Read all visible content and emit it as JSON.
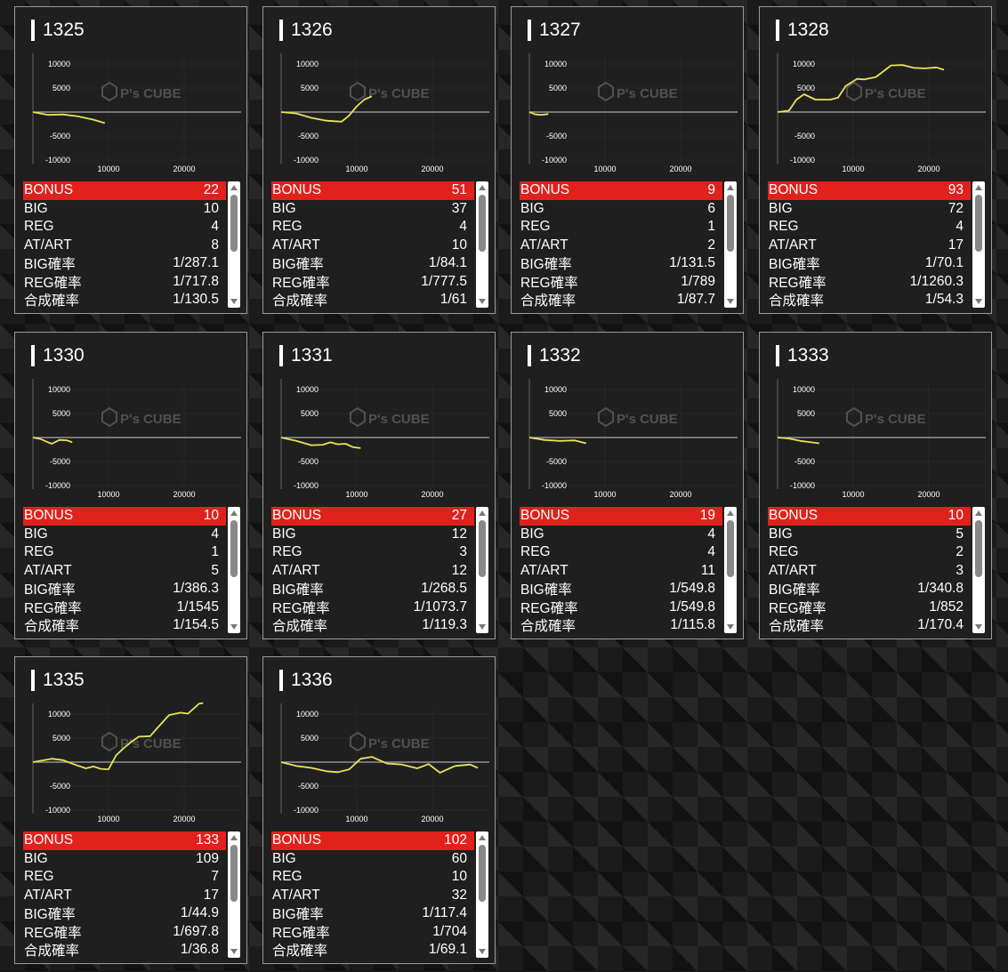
{
  "watermark": "P's CUBE",
  "colors": {
    "bonus_bg": "#e0211c",
    "line": "#e8e25a",
    "panel": "#1f1f1f"
  },
  "graph_axis": {
    "y_ticks": [
      "10000",
      "5000",
      "-5000",
      "-10000"
    ],
    "x_ticks": [
      "10000",
      "20000"
    ]
  },
  "machines": [
    {
      "number": "1325",
      "stats": [
        {
          "label": "BONUS",
          "value": "22"
        },
        {
          "label": "BIG",
          "value": "10"
        },
        {
          "label": "REG",
          "value": "4"
        },
        {
          "label": "AT/ART",
          "value": "8"
        },
        {
          "label": "BIG確率",
          "value": "1/287.1"
        },
        {
          "label": "REG確率",
          "value": "1/717.8"
        },
        {
          "label": "合成確率",
          "value": "1/130.5"
        }
      ],
      "chart_data": {
        "type": "line",
        "ylim": [
          -12000,
          12000
        ],
        "xlim": [
          0,
          27000
        ],
        "x": [
          0,
          2000,
          4000,
          6000,
          8000,
          9500
        ],
        "y": [
          0,
          -600,
          -500,
          -900,
          -1600,
          -2300
        ]
      }
    },
    {
      "number": "1326",
      "stats": [
        {
          "label": "BONUS",
          "value": "51"
        },
        {
          "label": "BIG",
          "value": "37"
        },
        {
          "label": "REG",
          "value": "4"
        },
        {
          "label": "AT/ART",
          "value": "10"
        },
        {
          "label": "BIG確率",
          "value": "1/84.1"
        },
        {
          "label": "REG確率",
          "value": "1/777.5"
        },
        {
          "label": "合成確率",
          "value": "1/61"
        }
      ],
      "chart_data": {
        "type": "line",
        "ylim": [
          -12000,
          12000
        ],
        "xlim": [
          0,
          27000
        ],
        "x": [
          0,
          2000,
          4000,
          6000,
          8000,
          9000,
          10000,
          11000,
          12000
        ],
        "y": [
          0,
          -300,
          -1200,
          -1800,
          -2000,
          -700,
          1200,
          2600,
          3300
        ]
      }
    },
    {
      "number": "1327",
      "stats": [
        {
          "label": "BONUS",
          "value": "9"
        },
        {
          "label": "BIG",
          "value": "6"
        },
        {
          "label": "REG",
          "value": "1"
        },
        {
          "label": "AT/ART",
          "value": "2"
        },
        {
          "label": "BIG確率",
          "value": "1/131.5"
        },
        {
          "label": "REG確率",
          "value": "1/789"
        },
        {
          "label": "合成確率",
          "value": "1/87.7"
        }
      ],
      "chart_data": {
        "type": "line",
        "ylim": [
          -12000,
          12000
        ],
        "xlim": [
          0,
          27000
        ],
        "x": [
          0,
          800,
          1600,
          2500
        ],
        "y": [
          0,
          -500,
          -600,
          -400
        ]
      }
    },
    {
      "number": "1328",
      "stats": [
        {
          "label": "BONUS",
          "value": "93"
        },
        {
          "label": "BIG",
          "value": "72"
        },
        {
          "label": "REG",
          "value": "4"
        },
        {
          "label": "AT/ART",
          "value": "17"
        },
        {
          "label": "BIG確率",
          "value": "1/70.1"
        },
        {
          "label": "REG確率",
          "value": "1/1260.3"
        },
        {
          "label": "合成確率",
          "value": "1/54.3"
        }
      ],
      "chart_data": {
        "type": "line",
        "ylim": [
          -12000,
          12000
        ],
        "xlim": [
          0,
          27000
        ],
        "x": [
          0,
          1500,
          2500,
          3500,
          5000,
          7000,
          8000,
          9000,
          10500,
          11500,
          13000,
          14000,
          15000,
          16500,
          18000,
          19500,
          21000,
          22000
        ],
        "y": [
          0,
          300,
          2600,
          3700,
          2600,
          2600,
          3000,
          5400,
          6900,
          6800,
          7300,
          8500,
          9700,
          9800,
          9200,
          9100,
          9300,
          8800
        ]
      }
    },
    {
      "number": "1330",
      "stats": [
        {
          "label": "BONUS",
          "value": "10"
        },
        {
          "label": "BIG",
          "value": "4"
        },
        {
          "label": "REG",
          "value": "1"
        },
        {
          "label": "AT/ART",
          "value": "5"
        },
        {
          "label": "BIG確率",
          "value": "1/386.3"
        },
        {
          "label": "REG確率",
          "value": "1/1545"
        },
        {
          "label": "合成確率",
          "value": "1/154.5"
        }
      ],
      "chart_data": {
        "type": "line",
        "ylim": [
          -12000,
          12000
        ],
        "xlim": [
          0,
          27000
        ],
        "x": [
          0,
          1000,
          2000,
          2500,
          3500,
          4500,
          5200
        ],
        "y": [
          0,
          -300,
          -1000,
          -1300,
          -500,
          -600,
          -1000
        ]
      }
    },
    {
      "number": "1331",
      "stats": [
        {
          "label": "BONUS",
          "value": "27"
        },
        {
          "label": "BIG",
          "value": "12"
        },
        {
          "label": "REG",
          "value": "3"
        },
        {
          "label": "AT/ART",
          "value": "12"
        },
        {
          "label": "BIG確率",
          "value": "1/268.5"
        },
        {
          "label": "REG確率",
          "value": "1/1073.7"
        },
        {
          "label": "合成確率",
          "value": "1/119.3"
        }
      ],
      "chart_data": {
        "type": "line",
        "ylim": [
          -12000,
          12000
        ],
        "xlim": [
          0,
          27000
        ],
        "x": [
          0,
          2000,
          4000,
          5500,
          6500,
          7500,
          8500,
          9500,
          10500
        ],
        "y": [
          0,
          -700,
          -1600,
          -1500,
          -1000,
          -1400,
          -1300,
          -2000,
          -2200
        ]
      }
    },
    {
      "number": "1332",
      "stats": [
        {
          "label": "BONUS",
          "value": "19"
        },
        {
          "label": "BIG",
          "value": "4"
        },
        {
          "label": "REG",
          "value": "4"
        },
        {
          "label": "AT/ART",
          "value": "11"
        },
        {
          "label": "BIG確率",
          "value": "1/549.8"
        },
        {
          "label": "REG確率",
          "value": "1/549.8"
        },
        {
          "label": "合成確率",
          "value": "1/115.8"
        }
      ],
      "chart_data": {
        "type": "line",
        "ylim": [
          -12000,
          12000
        ],
        "xlim": [
          0,
          27000
        ],
        "x": [
          0,
          2000,
          4000,
          6000,
          7500
        ],
        "y": [
          0,
          -500,
          -700,
          -600,
          -1200
        ]
      }
    },
    {
      "number": "1333",
      "stats": [
        {
          "label": "BONUS",
          "value": "10"
        },
        {
          "label": "BIG",
          "value": "5"
        },
        {
          "label": "REG",
          "value": "2"
        },
        {
          "label": "AT/ART",
          "value": "3"
        },
        {
          "label": "BIG確率",
          "value": "1/340.8"
        },
        {
          "label": "REG確率",
          "value": "1/852"
        },
        {
          "label": "合成確率",
          "value": "1/170.4"
        }
      ],
      "chart_data": {
        "type": "line",
        "ylim": [
          -12000,
          12000
        ],
        "xlim": [
          0,
          27000
        ],
        "x": [
          0,
          1500,
          3000,
          4000,
          5500
        ],
        "y": [
          0,
          -200,
          -700,
          -900,
          -1200
        ]
      }
    },
    {
      "number": "1335",
      "stats": [
        {
          "label": "BONUS",
          "value": "133"
        },
        {
          "label": "BIG",
          "value": "109"
        },
        {
          "label": "REG",
          "value": "7"
        },
        {
          "label": "AT/ART",
          "value": "17"
        },
        {
          "label": "BIG確率",
          "value": "1/44.9"
        },
        {
          "label": "REG確率",
          "value": "1/697.8"
        },
        {
          "label": "合成確率",
          "value": "1/36.8"
        }
      ],
      "chart_data": {
        "type": "line",
        "ylim": [
          -12000,
          12000
        ],
        "xlim": [
          0,
          27000
        ],
        "x": [
          0,
          2500,
          4000,
          5500,
          7000,
          8000,
          9000,
          10000,
          11000,
          12000,
          13000,
          14000,
          15500,
          16500,
          18000,
          19500,
          20500,
          22000,
          22500
        ],
        "y": [
          0,
          700,
          400,
          -500,
          -1300,
          -900,
          -1400,
          -1500,
          1400,
          2900,
          4200,
          5300,
          5400,
          7200,
          9800,
          10300,
          10100,
          12200,
          12300
        ]
      }
    },
    {
      "number": "1336",
      "stats": [
        {
          "label": "BONUS",
          "value": "102"
        },
        {
          "label": "BIG",
          "value": "60"
        },
        {
          "label": "REG",
          "value": "10"
        },
        {
          "label": "AT/ART",
          "value": "32"
        },
        {
          "label": "BIG確率",
          "value": "1/117.4"
        },
        {
          "label": "REG確率",
          "value": "1/704"
        },
        {
          "label": "合成確率",
          "value": "1/69.1"
        }
      ],
      "chart_data": {
        "type": "line",
        "ylim": [
          -12000,
          12000
        ],
        "xlim": [
          0,
          27000
        ],
        "x": [
          0,
          2000,
          4000,
          6000,
          7500,
          9000,
          10500,
          12000,
          14000,
          16000,
          18000,
          19500,
          21000,
          23000,
          25000,
          26000
        ],
        "y": [
          0,
          -800,
          -1200,
          -1900,
          -2100,
          -1500,
          700,
          1100,
          -300,
          -500,
          -1300,
          -400,
          -2200,
          -800,
          -500,
          -1200
        ]
      }
    }
  ]
}
